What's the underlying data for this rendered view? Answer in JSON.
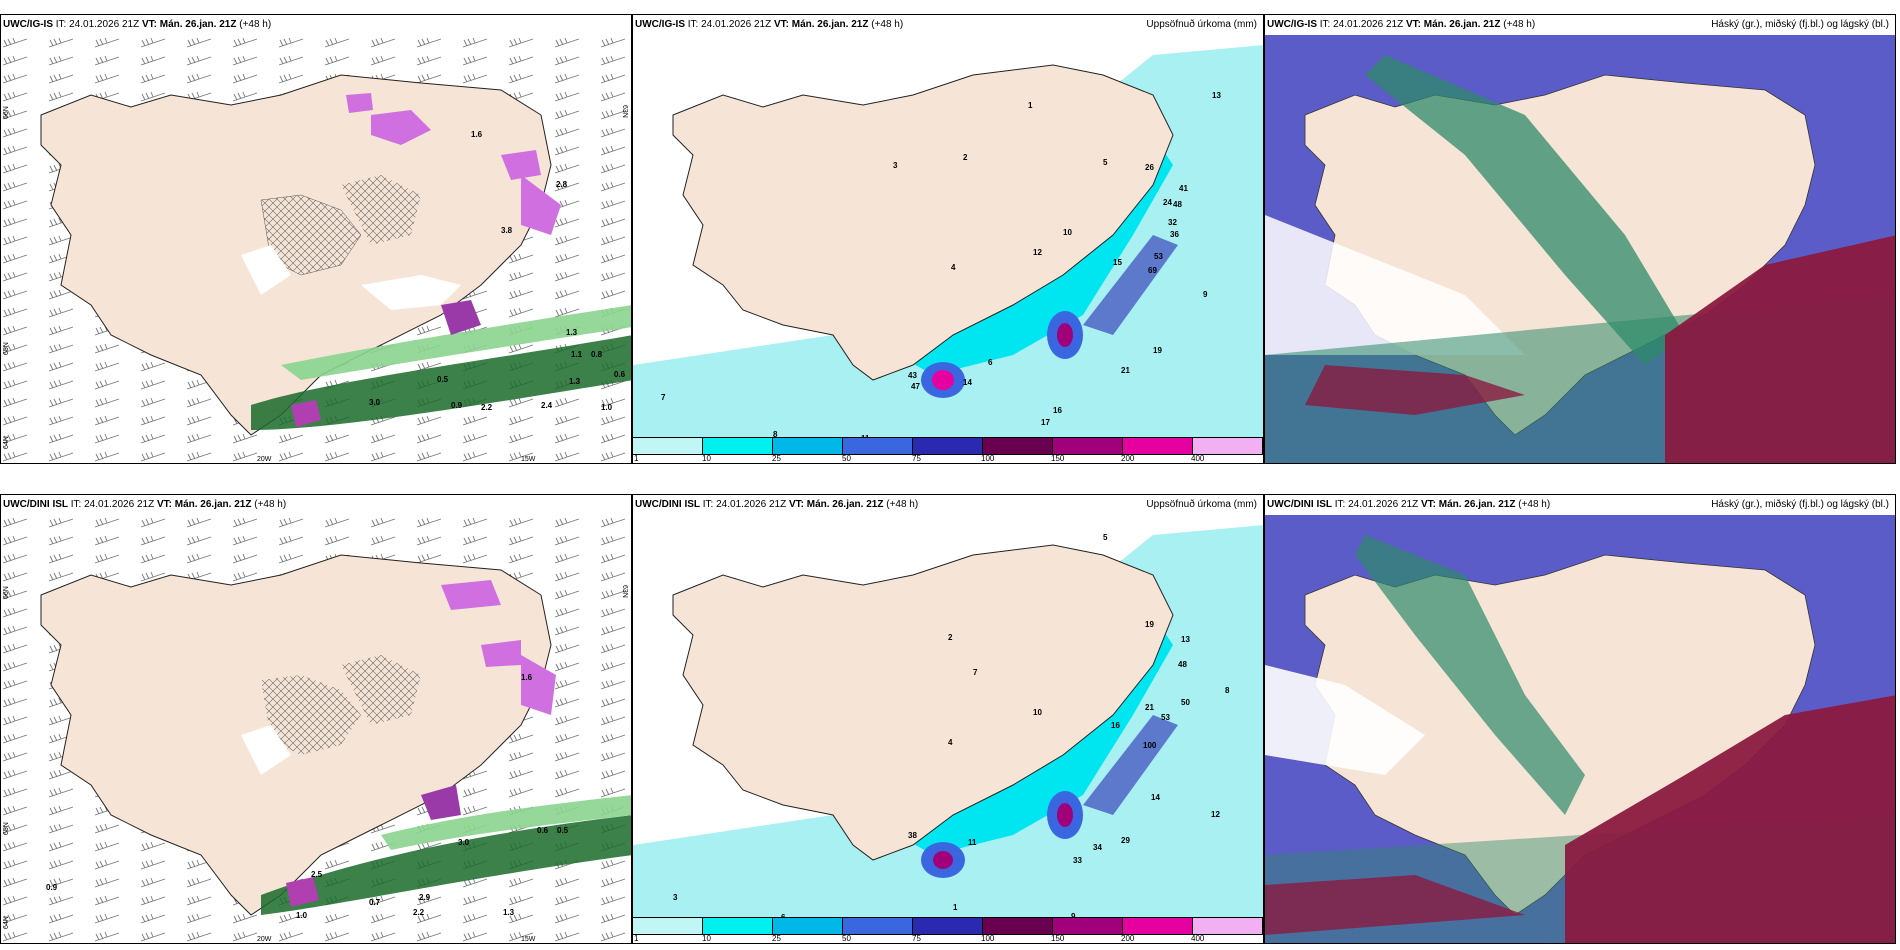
{
  "rows": [
    {
      "model": "UWC/IG-IS",
      "it": "IT: 24.01.2026 21Z",
      "vt_label": "VT:",
      "vt": "Mán. 26.jan. 21Z",
      "lead": "(+48 h)",
      "wind_labels": [
        "2.8",
        "1.6",
        "1.3",
        "1.1",
        "0.8",
        "0.6",
        "0.5",
        "1.3",
        "2.2",
        "3.0",
        "0.9",
        "2.4",
        "1.0",
        "3.8"
      ],
      "precip_labels": [
        "1",
        "2",
        "3",
        "4",
        "5",
        "6",
        "7",
        "8",
        "9",
        "10",
        "11",
        "12",
        "13",
        "14",
        "15",
        "16",
        "17",
        "19",
        "21",
        "24",
        "26",
        "32",
        "36",
        "41",
        "43",
        "47",
        "48",
        "53",
        "69"
      ],
      "axis_labels": [
        "66N",
        "65N",
        "64N",
        "63N",
        "20W",
        "15W"
      ]
    },
    {
      "model": "UWC/DINI ISL",
      "it": "IT: 24.01.2026 21Z",
      "vt_label": "VT:",
      "vt": "Mán. 26.jan. 21Z",
      "lead": "(+48 h)",
      "wind_labels": [
        "0.6",
        "0.5",
        "0.9",
        "2.5",
        "3.0",
        "2.2",
        "1.3",
        "0.7",
        "1.0",
        "2.9",
        "1.6"
      ],
      "precip_labels": [
        "1",
        "2",
        "3",
        "4",
        "5",
        "6",
        "7",
        "8",
        "9",
        "10",
        "11",
        "12",
        "13",
        "14",
        "16",
        "19",
        "21",
        "29",
        "33",
        "34",
        "38",
        "48",
        "50",
        "53",
        "100"
      ],
      "axis_labels": [
        "66N",
        "65N",
        "64N",
        "63N",
        "20W",
        "15W"
      ]
    }
  ],
  "panels": {
    "precip_title": "Uppsöfnuð úrkoma (mm)",
    "cloud_title": "Háský (gr.), miðský (fj.bl.) og lágský (bl.)"
  },
  "legend": {
    "labels": [
      "1",
      "10",
      "25",
      "50",
      "75",
      "100",
      "150",
      "200",
      "400"
    ],
    "colors": [
      "#c2f5f5",
      "#00f0f0",
      "#00b8e8",
      "#3a66e0",
      "#2a2ab0",
      "#6a0050",
      "#a0007a",
      "#e600a0",
      "#f2b0f2"
    ]
  },
  "colors": {
    "land": "#f6e5d6",
    "precip_light": "#a8f0f2",
    "precip_mid": "#00e6f0",
    "wind_green": "#1a6a2a",
    "snow_purple": "#d070e0",
    "high_cloud": "#5c5cc8",
    "mid_cloud": "#2e8a6a",
    "low_cloud": "#8a1a40"
  }
}
